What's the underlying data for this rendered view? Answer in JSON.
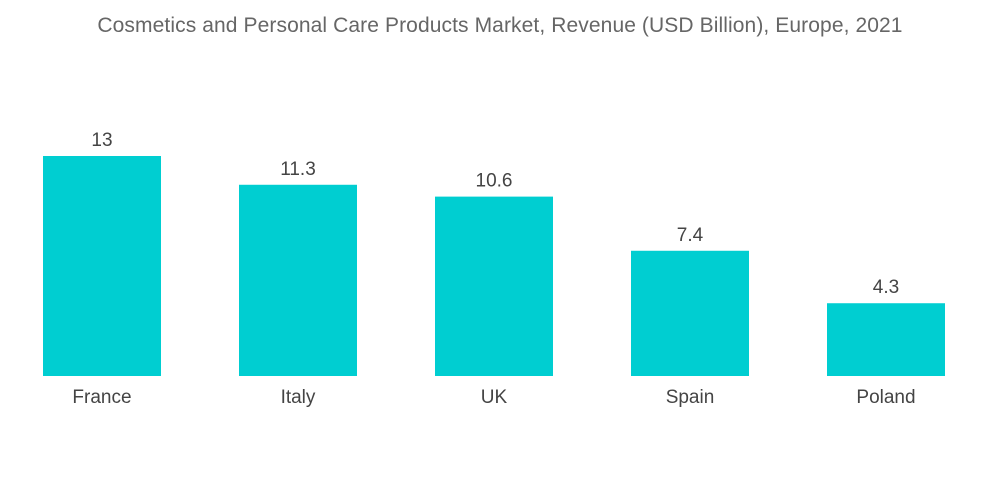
{
  "chart_data": {
    "type": "bar",
    "title": "Cosmetics and Personal Care Products Market, Revenue (USD Billion), Europe, 2021",
    "categories": [
      "France",
      "Italy",
      "UK",
      "Spain",
      "Poland"
    ],
    "values": [
      13,
      11.3,
      10.6,
      7.4,
      4.3
    ],
    "value_labels": [
      "13",
      "11.3",
      "10.6",
      "7.4",
      "4.3"
    ],
    "xlabel": "",
    "ylabel": "",
    "ylim": [
      0,
      13
    ],
    "grid": false,
    "legend": "none",
    "bar_color": "#00CED1"
  }
}
